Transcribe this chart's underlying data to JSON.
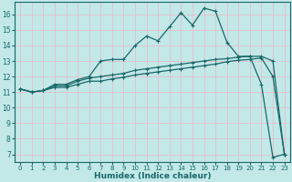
{
  "xlabel": "Humidex (Indice chaleur)",
  "bg_color": "#c2e8e8",
  "grid_color": "#e8b8c8",
  "line_color": "#1a6868",
  "xlim": [
    -0.5,
    23.5
  ],
  "ylim": [
    6.5,
    16.8
  ],
  "yticks": [
    7,
    8,
    9,
    10,
    11,
    12,
    13,
    14,
    15,
    16
  ],
  "xticks": [
    0,
    1,
    2,
    3,
    4,
    5,
    6,
    7,
    8,
    9,
    10,
    11,
    12,
    13,
    14,
    15,
    16,
    17,
    18,
    19,
    20,
    21,
    22,
    23
  ],
  "line1_x": [
    0,
    1,
    2,
    3,
    4,
    5,
    6,
    7,
    8,
    9,
    10,
    11,
    12,
    13,
    14,
    15,
    16,
    17,
    18,
    19,
    20,
    21,
    22,
    23
  ],
  "line1_y": [
    11.2,
    11.0,
    11.1,
    11.5,
    11.5,
    11.8,
    12.0,
    13.0,
    13.1,
    13.1,
    14.0,
    14.6,
    14.3,
    15.2,
    16.1,
    15.3,
    16.4,
    16.2,
    14.2,
    13.3,
    13.3,
    11.5,
    6.8,
    7.0
  ],
  "line2_x": [
    0,
    1,
    2,
    3,
    4,
    5,
    6,
    7,
    8,
    9,
    10,
    11,
    12,
    13,
    14,
    15,
    16,
    17,
    18,
    19,
    20,
    21,
    22,
    23
  ],
  "line2_y": [
    11.2,
    11.0,
    11.1,
    11.4,
    11.4,
    11.7,
    11.9,
    12.0,
    12.1,
    12.2,
    12.4,
    12.5,
    12.6,
    12.7,
    12.8,
    12.9,
    13.0,
    13.1,
    13.15,
    13.25,
    13.3,
    13.3,
    13.0,
    7.0
  ],
  "line3_x": [
    0,
    1,
    2,
    3,
    4,
    5,
    6,
    7,
    8,
    9,
    10,
    11,
    12,
    13,
    14,
    15,
    16,
    17,
    18,
    19,
    20,
    21,
    22,
    23
  ],
  "line3_y": [
    11.2,
    11.0,
    11.1,
    11.3,
    11.3,
    11.5,
    11.7,
    11.7,
    11.85,
    11.95,
    12.1,
    12.2,
    12.3,
    12.4,
    12.5,
    12.6,
    12.7,
    12.8,
    12.95,
    13.05,
    13.1,
    13.2,
    12.0,
    7.0
  ]
}
